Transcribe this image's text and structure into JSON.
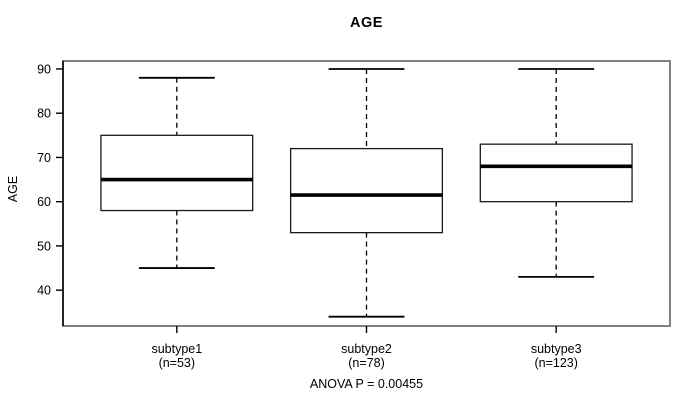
{
  "chart_data": {
    "type": "boxplot",
    "title": "AGE",
    "ylabel": "AGE",
    "xlabel": "",
    "annotation": "ANOVA P = 0.00455",
    "yticks": [
      40,
      50,
      60,
      70,
      80,
      90
    ],
    "ylim": [
      31.9,
      91.8
    ],
    "grid": false,
    "legend": false,
    "series": [
      {
        "category": "subtype1",
        "count_label": "(n=53)",
        "n": 53,
        "whisker_low": 45,
        "q1": 58,
        "median": 65,
        "q3": 75,
        "whisker_high": 88,
        "outliers": []
      },
      {
        "category": "subtype2",
        "count_label": "(n=78)",
        "n": 78,
        "whisker_low": 34,
        "q1": 53,
        "median": 61.5,
        "q3": 72,
        "whisker_high": 90,
        "outliers": []
      },
      {
        "category": "subtype3",
        "count_label": "(n=123)",
        "n": 123,
        "whisker_low": 43,
        "q1": 60,
        "median": 68,
        "q3": 73,
        "whisker_high": 90,
        "outliers": []
      }
    ],
    "colors": {
      "box_stroke": "#1a1a1a",
      "median": "#000000",
      "whisker": "#000000",
      "plot_border": "#808080",
      "axis": "#000000",
      "background": "#ffffff",
      "text": "#000000"
    }
  }
}
